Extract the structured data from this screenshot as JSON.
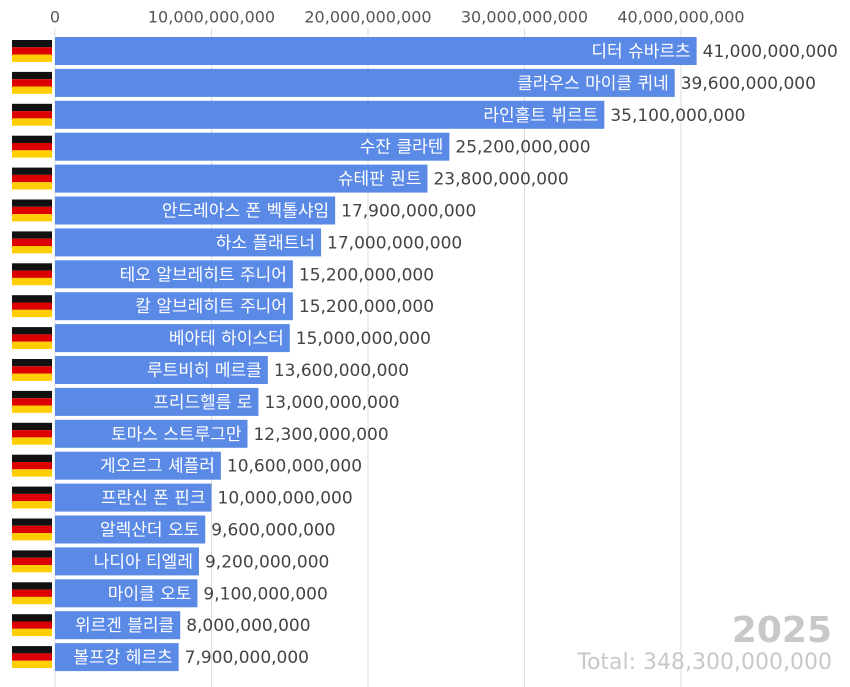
{
  "chart_data": {
    "type": "bar",
    "orientation": "horizontal",
    "categories": [
      "디터 슈바르츠",
      "클라우스 마이클 퀴네",
      "라인홀트 뷔르트",
      "수잔 클라텐",
      "슈테판 퀀트",
      "안드레아스 폰 벡톨샤임",
      "하소 플래트너",
      "테오 알브레히트 주니어",
      "칼 알브레히트 주니어",
      "베아테 하이스터",
      "루트비히 메르클",
      "프리드헬름 로",
      "토마스 스트루그만",
      "게오르그 셰플러",
      "프란신 폰 핀크",
      "알렉산더 오토",
      "나디아 티엘레",
      "마이클 오토",
      "위르겐 블리클",
      "볼프강 헤르츠"
    ],
    "values": [
      41000000000,
      39600000000,
      35100000000,
      25200000000,
      23800000000,
      17900000000,
      17000000000,
      15200000000,
      15200000000,
      15000000000,
      13600000000,
      13000000000,
      12300000000,
      10600000000,
      10000000000,
      9600000000,
      9200000000,
      9100000000,
      8000000000,
      7900000000
    ],
    "value_labels": [
      "41,000,000,000",
      "39,600,000,000",
      "35,100,000,000",
      "25,200,000,000",
      "23,800,000,000",
      "17,900,000,000",
      "17,000,000,000",
      "15,200,000,000",
      "15,200,000,000",
      "15,000,000,000",
      "13,600,000,000",
      "13,000,000,000",
      "12,300,000,000",
      "10,600,000,000",
      "10,000,000,000",
      "9,600,000,000",
      "9,200,000,000",
      "9,100,000,000",
      "8,000,000,000",
      "7,900,000,000"
    ],
    "color": "#5b8ae6",
    "xlim": [
      0,
      50000000000
    ],
    "xticks": [
      0,
      {
        "value": 10000000000,
        "label": "10,000,000,000"
      },
      {
        "value": 20000000000,
        "label": "20,000,000,000"
      },
      {
        "value": 30000000000,
        "label": "30,000,000,000"
      },
      {
        "value": 40000000000,
        "label": "40,000,000,000"
      }
    ],
    "grid": true,
    "year": "2025",
    "total": "Total: 348,300,000,000"
  }
}
